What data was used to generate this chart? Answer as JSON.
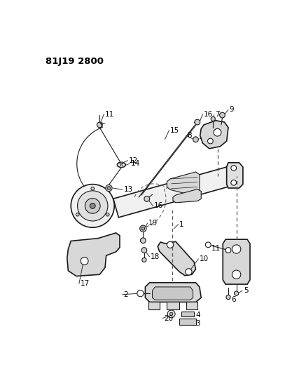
{
  "title": "81J19 2800",
  "bg": "#ffffff",
  "lc": "#1a1a1a",
  "fig_w": 4.07,
  "fig_h": 5.33,
  "dpi": 100
}
